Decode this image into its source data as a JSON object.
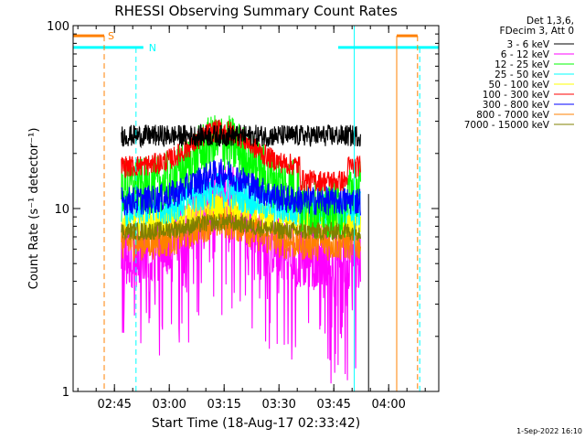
{
  "chart_data": {
    "type": "line",
    "title": "RHESSI Observing Summary Count Rates",
    "xlabel": "Start Time (18-Aug-17 02:33:42)",
    "ylabel": "Count Rate (s⁻¹ detector⁻¹)",
    "yscale": "log",
    "ylim": [
      1,
      100
    ],
    "xlim_minutes": [
      0,
      100
    ],
    "x_ticks": [
      {
        "label": "02:45",
        "minute": 11.3
      },
      {
        "label": "03:00",
        "minute": 26.3
      },
      {
        "label": "03:15",
        "minute": 41.3
      },
      {
        "label": "03:30",
        "minute": 56.3
      },
      {
        "label": "03:45",
        "minute": 71.3
      },
      {
        "label": "04:00",
        "minute": 86.3
      }
    ],
    "y_ticks": [
      {
        "label": "1",
        "value": 1
      },
      {
        "label": "10",
        "value": 10
      },
      {
        "label": "100",
        "value": 100
      }
    ],
    "legend_header": [
      "Det 1,3,6,",
      "FDecim 3, Att 0"
    ],
    "legend_position": "top-right",
    "series": [
      {
        "name": "3 - 6 keV",
        "color": "#000000",
        "base": 25.0,
        "noise": 0.06,
        "dip": 0.0,
        "bump": 0.0,
        "fall": 0.0
      },
      {
        "name": "6 - 12 keV",
        "color": "#ff00ff",
        "base": 5.5,
        "noise": 0.18,
        "dip": 0.35,
        "bump": 0.35,
        "fall": 0.0
      },
      {
        "name": "12 - 25 keV",
        "color": "#00ff00",
        "base": 13.0,
        "noise": 0.16,
        "dip": 0.0,
        "bump": 0.25,
        "fall": 0.12
      },
      {
        "name": "25 - 50 keV",
        "color": "#00ffff",
        "base": 10.0,
        "noise": 0.1,
        "dip": 0.0,
        "bump": 0.1,
        "fall": 0.0
      },
      {
        "name": "50 - 100 keV",
        "color": "#ffff00",
        "base": 8.5,
        "noise": 0.08,
        "dip": 0.0,
        "bump": 0.08,
        "fall": 0.0
      },
      {
        "name": "100 - 300 keV",
        "color": "#ff0000",
        "base": 17.0,
        "noise": 0.06,
        "dip": 0.0,
        "bump": 0.2,
        "fall": 0.08
      },
      {
        "name": "300 - 800 keV",
        "color": "#0000ff",
        "base": 11.0,
        "noise": 0.08,
        "dip": 0.0,
        "bump": 0.15,
        "fall": 0.0
      },
      {
        "name": "800 - 7000 keV",
        "color": "#ff8000",
        "base": 6.5,
        "noise": 0.1,
        "dip": 0.0,
        "bump": 0.12,
        "fall": 0.0
      },
      {
        "name": "7000 - 15000 keV",
        "color": "#808000",
        "base": 7.5,
        "noise": 0.05,
        "dip": 0.0,
        "bump": 0.05,
        "fall": 0.0
      }
    ],
    "data_window_minutes": [
      13.2,
      78.6
    ],
    "attenuator_flag": {
      "label": "S",
      "color": "#ff8000",
      "value": 88
    },
    "night_flag": {
      "label": "N",
      "color": "#00ffff",
      "value": 76
    },
    "night_line_minutes": [
      19.2,
      72.5
    ],
    "saa_line_minutes": [
      8.0,
      89.2
    ],
    "orange_dashed_minutes": [
      8.0,
      94.5
    ],
    "cyan_dashed_minutes": [
      17.2,
      94.8
    ]
  },
  "footer_date": "1-Sep-2022 16:10"
}
